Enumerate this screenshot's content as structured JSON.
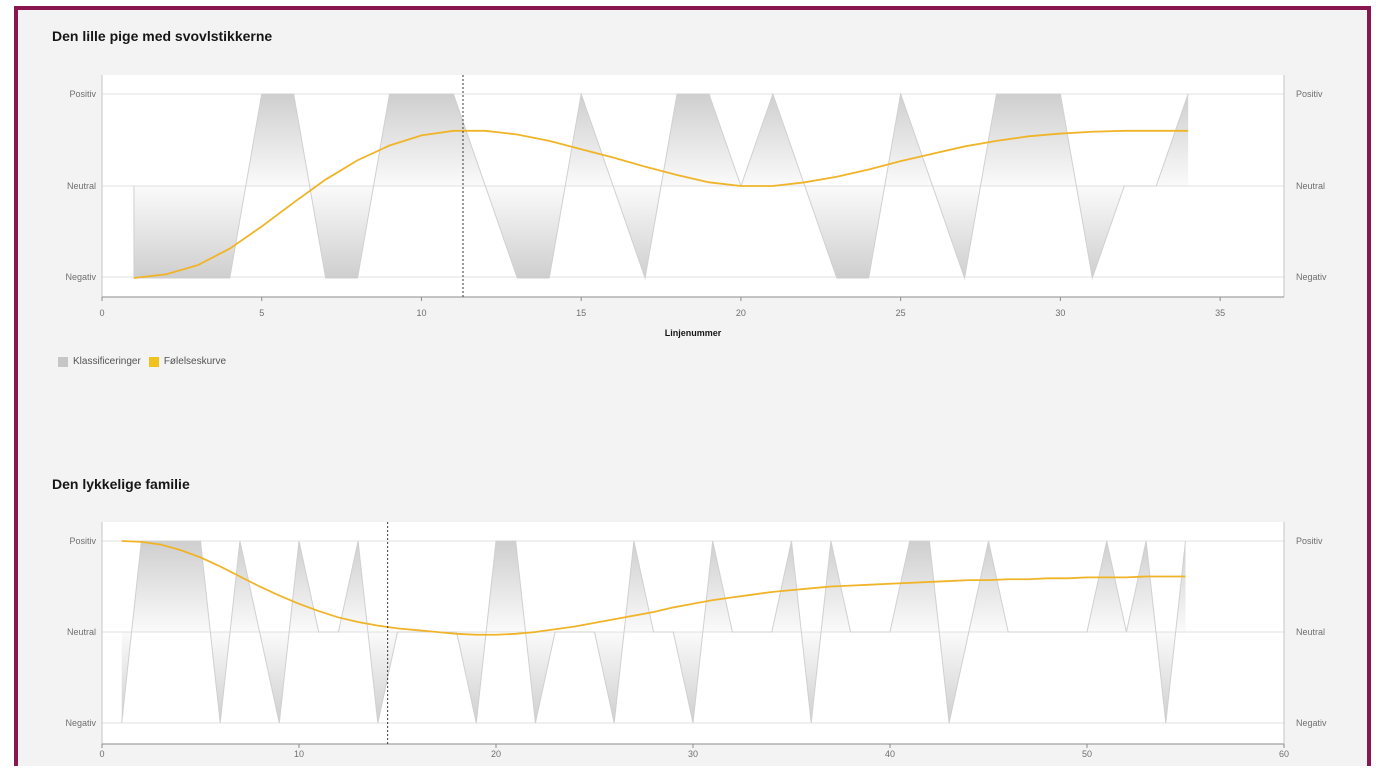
{
  "legend": {
    "items": [
      {
        "label": "Klassificeringer",
        "color": "#c6c6c6"
      },
      {
        "label": "Følelseskurve",
        "color": "#f1c21b"
      }
    ]
  },
  "colors": {
    "frame": "#8a1650",
    "background": "#f3f3f3",
    "curve": "#f0b429",
    "area": "#c6c6c6"
  },
  "chart_data": [
    {
      "type": "area",
      "title": "Den lille pige med svovlstikkerne",
      "xlabel": "Linjenummer",
      "ylabel": "",
      "xlim": [
        0,
        37
      ],
      "xticks": [
        0,
        5,
        10,
        15,
        20,
        25,
        30,
        35
      ],
      "yticks": [
        "Negativ",
        "Neutral",
        "Positiv"
      ],
      "ylim": [
        -1,
        1
      ],
      "marker_x": 11.3,
      "series": [
        {
          "name": "Klassificeringer",
          "points": [
            [
              1,
              0
            ],
            [
              1,
              -1
            ],
            [
              4,
              -1
            ],
            [
              5,
              1
            ],
            [
              6,
              1
            ],
            [
              7,
              -1
            ],
            [
              8,
              -1
            ],
            [
              9,
              1
            ],
            [
              11,
              1
            ],
            [
              13,
              -1
            ],
            [
              14,
              -1
            ],
            [
              15,
              1
            ],
            [
              17,
              -1
            ],
            [
              18,
              1
            ],
            [
              19,
              1
            ],
            [
              20,
              0
            ],
            [
              21,
              1
            ],
            [
              23,
              -1
            ],
            [
              24,
              -1
            ],
            [
              25,
              1
            ],
            [
              27,
              -1
            ],
            [
              28,
              1
            ],
            [
              30,
              1
            ],
            [
              31,
              -1
            ],
            [
              32,
              0
            ],
            [
              33,
              0
            ],
            [
              34,
              1
            ]
          ]
        },
        {
          "name": "Følelseskurve",
          "points": [
            [
              1,
              -1
            ],
            [
              2,
              -0.96
            ],
            [
              3,
              -0.86
            ],
            [
              4,
              -0.68
            ],
            [
              5,
              -0.44
            ],
            [
              6,
              -0.18
            ],
            [
              7,
              0.07
            ],
            [
              8,
              0.28
            ],
            [
              9,
              0.44
            ],
            [
              10,
              0.55
            ],
            [
              11,
              0.6
            ],
            [
              12,
              0.6
            ],
            [
              13,
              0.56
            ],
            [
              14,
              0.49
            ],
            [
              15,
              0.4
            ],
            [
              16,
              0.31
            ],
            [
              17,
              0.21
            ],
            [
              18,
              0.12
            ],
            [
              19,
              0.04
            ],
            [
              20,
              0.0
            ],
            [
              21,
              0.0
            ],
            [
              22,
              0.04
            ],
            [
              23,
              0.1
            ],
            [
              24,
              0.18
            ],
            [
              25,
              0.27
            ],
            [
              26,
              0.35
            ],
            [
              27,
              0.43
            ],
            [
              28,
              0.49
            ],
            [
              29,
              0.54
            ],
            [
              30,
              0.57
            ],
            [
              31,
              0.59
            ],
            [
              32,
              0.6
            ],
            [
              33,
              0.6
            ],
            [
              34,
              0.6
            ]
          ]
        }
      ]
    },
    {
      "type": "area",
      "title": "Den lykkelige familie",
      "xlabel": "",
      "ylabel": "",
      "xlim": [
        0,
        60
      ],
      "xticks": [
        0,
        10,
        20,
        30,
        40,
        50,
        60
      ],
      "yticks": [
        "Negativ",
        "Neutral",
        "Positiv"
      ],
      "ylim": [
        -1,
        1
      ],
      "marker_x": 14.5,
      "series": [
        {
          "name": "Klassificeringer",
          "points": [
            [
              1,
              -1
            ],
            [
              2,
              1
            ],
            [
              5,
              1
            ],
            [
              6,
              -1
            ],
            [
              7,
              1
            ],
            [
              9,
              -1
            ],
            [
              10,
              1
            ],
            [
              11,
              0
            ],
            [
              12,
              0
            ],
            [
              13,
              1
            ],
            [
              14,
              -1
            ],
            [
              15,
              0
            ],
            [
              18,
              0
            ],
            [
              19,
              -1
            ],
            [
              20,
              1
            ],
            [
              21,
              1
            ],
            [
              22,
              -1
            ],
            [
              23,
              0
            ],
            [
              25,
              0
            ],
            [
              26,
              -1
            ],
            [
              27,
              1
            ],
            [
              28,
              0
            ],
            [
              29,
              0
            ],
            [
              30,
              -1
            ],
            [
              31,
              1
            ],
            [
              32,
              0
            ],
            [
              34,
              0
            ],
            [
              35,
              1
            ],
            [
              36,
              -1
            ],
            [
              37,
              1
            ],
            [
              38,
              0
            ],
            [
              40,
              0
            ],
            [
              41,
              1
            ],
            [
              42,
              1
            ],
            [
              43,
              -1
            ],
            [
              45,
              1
            ],
            [
              46,
              0
            ],
            [
              50,
              0
            ],
            [
              51,
              1
            ],
            [
              52,
              0
            ],
            [
              53,
              1
            ],
            [
              54,
              -1
            ],
            [
              55,
              1
            ]
          ]
        },
        {
          "name": "Følelseskurve",
          "points": [
            [
              1,
              1
            ],
            [
              2,
              0.99
            ],
            [
              3,
              0.96
            ],
            [
              4,
              0.9
            ],
            [
              5,
              0.82
            ],
            [
              6,
              0.72
            ],
            [
              7,
              0.61
            ],
            [
              8,
              0.5
            ],
            [
              9,
              0.4
            ],
            [
              10,
              0.31
            ],
            [
              11,
              0.23
            ],
            [
              12,
              0.16
            ],
            [
              13,
              0.11
            ],
            [
              14,
              0.07
            ],
            [
              15,
              0.04
            ],
            [
              16,
              0.02
            ],
            [
              17,
              0.0
            ],
            [
              18,
              -0.02
            ],
            [
              19,
              -0.03
            ],
            [
              20,
              -0.03
            ],
            [
              21,
              -0.02
            ],
            [
              22,
              0.0
            ],
            [
              23,
              0.03
            ],
            [
              24,
              0.06
            ],
            [
              25,
              0.1
            ],
            [
              26,
              0.14
            ],
            [
              27,
              0.18
            ],
            [
              28,
              0.22
            ],
            [
              29,
              0.27
            ],
            [
              30,
              0.31
            ],
            [
              31,
              0.35
            ],
            [
              32,
              0.38
            ],
            [
              33,
              0.41
            ],
            [
              34,
              0.44
            ],
            [
              35,
              0.46
            ],
            [
              36,
              0.48
            ],
            [
              37,
              0.5
            ],
            [
              38,
              0.51
            ],
            [
              39,
              0.52
            ],
            [
              40,
              0.53
            ],
            [
              41,
              0.54
            ],
            [
              42,
              0.55
            ],
            [
              43,
              0.56
            ],
            [
              44,
              0.57
            ],
            [
              45,
              0.57
            ],
            [
              46,
              0.58
            ],
            [
              47,
              0.58
            ],
            [
              48,
              0.59
            ],
            [
              49,
              0.59
            ],
            [
              50,
              0.6
            ],
            [
              51,
              0.6
            ],
            [
              52,
              0.6
            ],
            [
              53,
              0.61
            ],
            [
              54,
              0.61
            ],
            [
              55,
              0.61
            ]
          ]
        }
      ]
    }
  ]
}
